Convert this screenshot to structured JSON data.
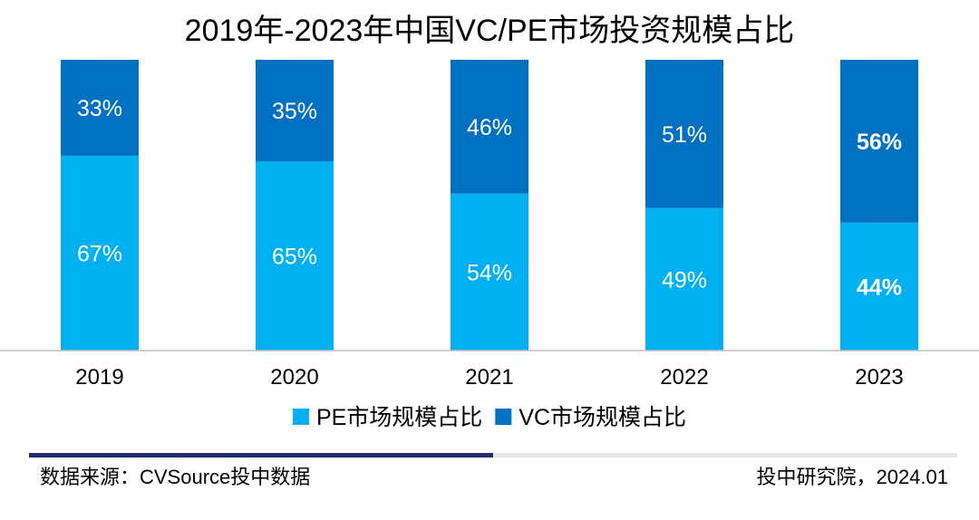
{
  "chart_data": {
    "type": "bar",
    "stacked": true,
    "title": "2019年-2023年中国VC/PE市场投资规模占比",
    "xlabel": "",
    "ylabel": "",
    "ylim": [
      0,
      100
    ],
    "grid": false,
    "legend_position": "bottom",
    "categories": [
      "2019",
      "2020",
      "2021",
      "2022",
      "2023"
    ],
    "series": [
      {
        "name": "PE市场规模占比",
        "values": [
          67,
          65,
          54,
          49,
          44
        ],
        "labels": [
          "67%",
          "65%",
          "54%",
          "49%",
          "44%"
        ],
        "color": "#00b0f0"
      },
      {
        "name": "VC市场规模占比",
        "values": [
          33,
          35,
          46,
          51,
          56
        ],
        "labels": [
          "33%",
          "35%",
          "46%",
          "51%",
          "56%"
        ],
        "color": "#0070c0"
      }
    ],
    "bold_labels_category": "2023"
  },
  "footer": {
    "source": "数据来源：CVSource投中数据",
    "credit": "投中研究院，2024.01"
  }
}
